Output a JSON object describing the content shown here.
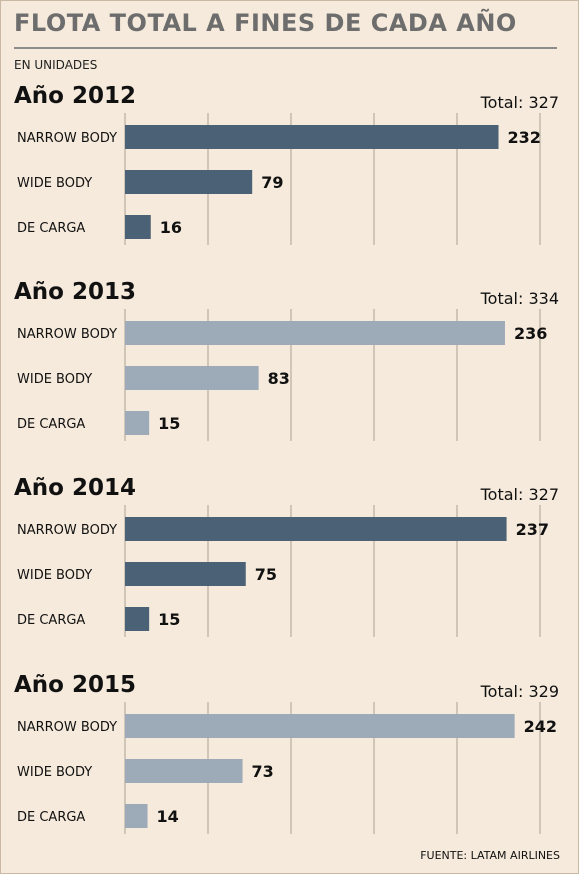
{
  "header": {
    "title": "FLOTA TOTAL A FINES DE CADA AÑO",
    "units": "EN UNIDADES"
  },
  "source": "FUENTE: LATAM AIRLINES",
  "colors": {
    "dark_bar": "#4b6175",
    "light_bar": "#9daab8",
    "grid": "#a9a296",
    "background": "#f5eadb"
  },
  "chart_data": [
    {
      "type": "bar",
      "orientation": "horizontal",
      "title": "Año 2012",
      "total": "Total: 327",
      "categories": [
        "NARROW BODY",
        "WIDE BODY",
        "DE CARGA"
      ],
      "values": [
        232,
        79,
        16
      ],
      "value_labels": [
        "232",
        "79",
        "16"
      ],
      "bar_color": "#4b6175",
      "grid": true
    },
    {
      "type": "bar",
      "orientation": "horizontal",
      "title": "Año 2013",
      "total": "Total: 334",
      "categories": [
        "NARROW BODY",
        "WIDE BODY",
        "DE CARGA"
      ],
      "values": [
        236,
        83,
        15
      ],
      "value_labels": [
        "236",
        "83",
        "15"
      ],
      "bar_color": "#9daab8",
      "grid": true
    },
    {
      "type": "bar",
      "orientation": "horizontal",
      "title": "Año 2014",
      "total": "Total: 327",
      "categories": [
        "NARROW BODY",
        "WIDE BODY",
        "DE CARGA"
      ],
      "values": [
        237,
        75,
        15
      ],
      "value_labels": [
        "237",
        "75",
        "15"
      ],
      "bar_color": "#4b6175",
      "grid": true
    },
    {
      "type": "bar",
      "orientation": "horizontal",
      "title": "Año 2015",
      "total": "Total: 329",
      "categories": [
        "NARROW BODY",
        "WIDE BODY",
        "DE CARGA"
      ],
      "values": [
        242,
        73,
        14
      ],
      "value_labels": [
        "242",
        "73",
        "14"
      ],
      "bar_color": "#9daab8",
      "grid": true
    }
  ]
}
